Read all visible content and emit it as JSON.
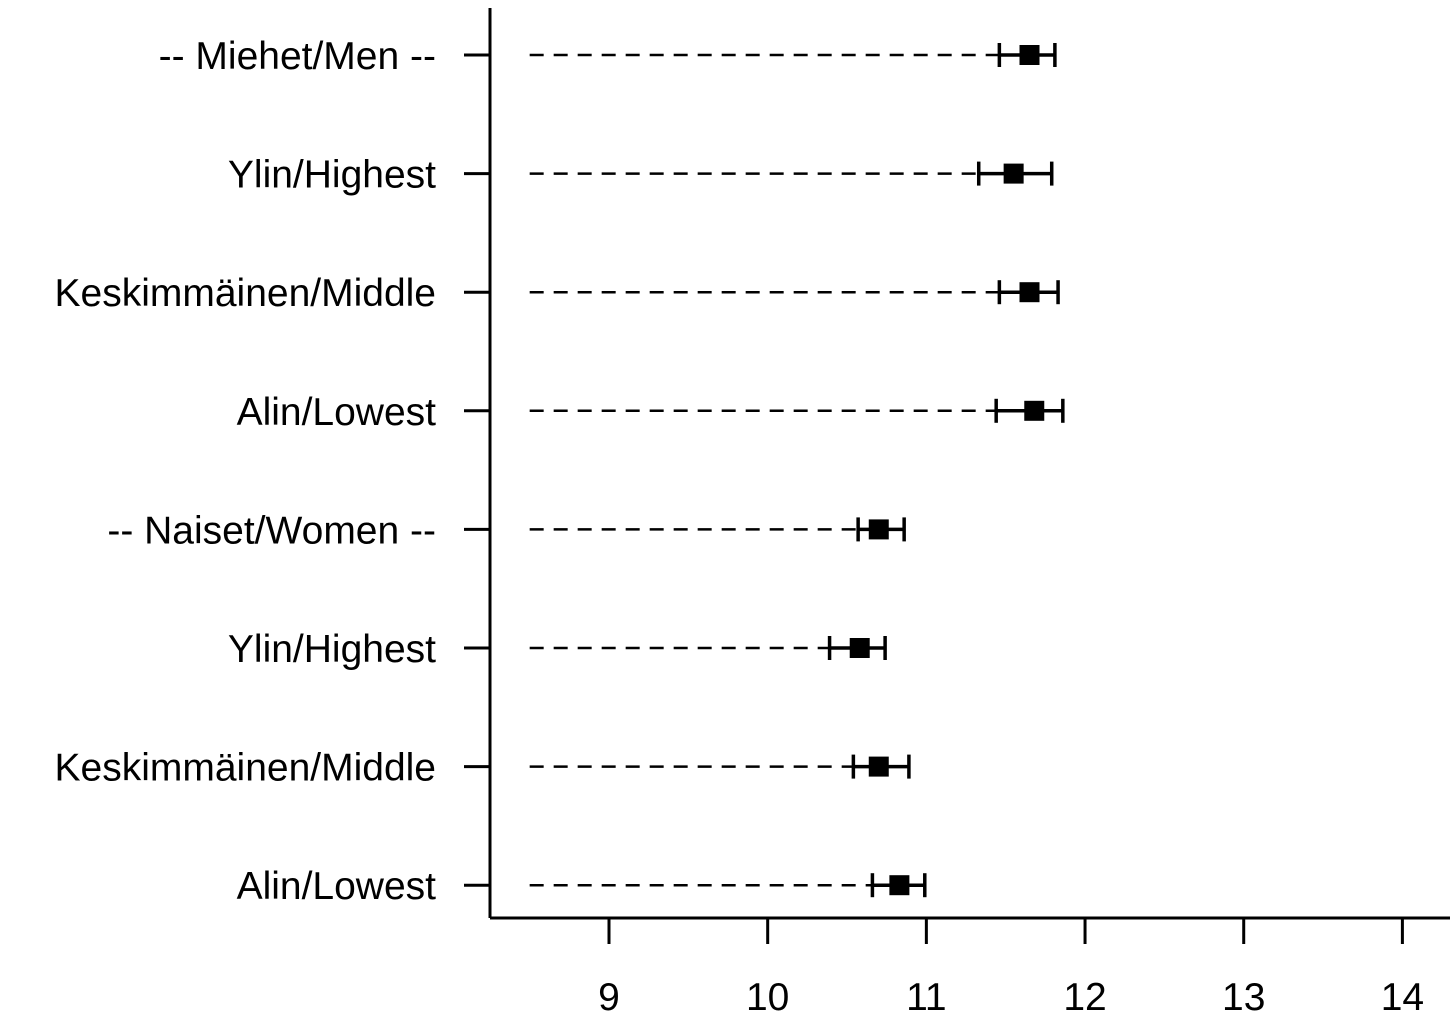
{
  "chart_data": {
    "type": "dot-plot",
    "categories": [
      "-- Miehet/Men --",
      "Ylin/Highest",
      "Keskimmäinen/Middle",
      "Alin/Lowest",
      "-- Naiset/Women --",
      "Ylin/Highest",
      "Keskimmäinen/Middle",
      "Alin/Lowest"
    ],
    "values": [
      11.65,
      11.55,
      11.65,
      11.68,
      10.7,
      10.58,
      10.7,
      10.83
    ],
    "ci_lower": [
      11.46,
      11.33,
      11.46,
      11.44,
      10.57,
      10.39,
      10.54,
      10.66
    ],
    "ci_upper": [
      11.81,
      11.79,
      11.83,
      11.86,
      10.86,
      10.74,
      10.89,
      10.99
    ],
    "xticks": [
      9,
      10,
      11,
      12,
      13,
      14
    ],
    "xlim": [
      8.25,
      14.3
    ],
    "guide_start": 8.5,
    "grid": false,
    "title": "",
    "xlabel": "",
    "ylabel": "",
    "colors": {
      "marks": "#000000",
      "background": "#ffffff"
    }
  }
}
